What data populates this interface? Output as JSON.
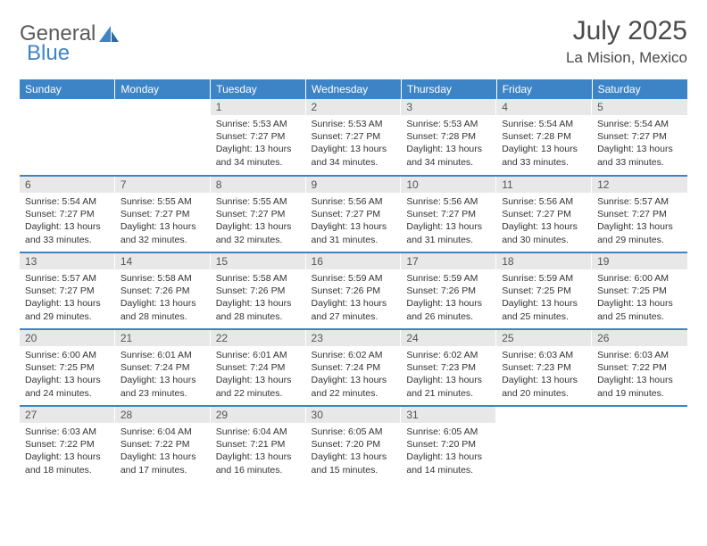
{
  "brand": {
    "part1": "General",
    "part2": "Blue"
  },
  "title": "July 2025",
  "location": "La Mision, Mexico",
  "colors": {
    "header_bg": "#3d84c6",
    "header_text": "#ffffff",
    "daynum_bg": "#e8e8e8",
    "row_border": "#3d84c6",
    "page_bg": "#ffffff",
    "body_text": "#333333"
  },
  "weekdays": [
    "Sunday",
    "Monday",
    "Tuesday",
    "Wednesday",
    "Thursday",
    "Friday",
    "Saturday"
  ],
  "weeks": [
    [
      {
        "empty": true
      },
      {
        "empty": true
      },
      {
        "day": "1",
        "sunrise": "Sunrise: 5:53 AM",
        "sunset": "Sunset: 7:27 PM",
        "daylight": "Daylight: 13 hours and 34 minutes."
      },
      {
        "day": "2",
        "sunrise": "Sunrise: 5:53 AM",
        "sunset": "Sunset: 7:27 PM",
        "daylight": "Daylight: 13 hours and 34 minutes."
      },
      {
        "day": "3",
        "sunrise": "Sunrise: 5:53 AM",
        "sunset": "Sunset: 7:28 PM",
        "daylight": "Daylight: 13 hours and 34 minutes."
      },
      {
        "day": "4",
        "sunrise": "Sunrise: 5:54 AM",
        "sunset": "Sunset: 7:28 PM",
        "daylight": "Daylight: 13 hours and 33 minutes."
      },
      {
        "day": "5",
        "sunrise": "Sunrise: 5:54 AM",
        "sunset": "Sunset: 7:27 PM",
        "daylight": "Daylight: 13 hours and 33 minutes."
      }
    ],
    [
      {
        "day": "6",
        "sunrise": "Sunrise: 5:54 AM",
        "sunset": "Sunset: 7:27 PM",
        "daylight": "Daylight: 13 hours and 33 minutes."
      },
      {
        "day": "7",
        "sunrise": "Sunrise: 5:55 AM",
        "sunset": "Sunset: 7:27 PM",
        "daylight": "Daylight: 13 hours and 32 minutes."
      },
      {
        "day": "8",
        "sunrise": "Sunrise: 5:55 AM",
        "sunset": "Sunset: 7:27 PM",
        "daylight": "Daylight: 13 hours and 32 minutes."
      },
      {
        "day": "9",
        "sunrise": "Sunrise: 5:56 AM",
        "sunset": "Sunset: 7:27 PM",
        "daylight": "Daylight: 13 hours and 31 minutes."
      },
      {
        "day": "10",
        "sunrise": "Sunrise: 5:56 AM",
        "sunset": "Sunset: 7:27 PM",
        "daylight": "Daylight: 13 hours and 31 minutes."
      },
      {
        "day": "11",
        "sunrise": "Sunrise: 5:56 AM",
        "sunset": "Sunset: 7:27 PM",
        "daylight": "Daylight: 13 hours and 30 minutes."
      },
      {
        "day": "12",
        "sunrise": "Sunrise: 5:57 AM",
        "sunset": "Sunset: 7:27 PM",
        "daylight": "Daylight: 13 hours and 29 minutes."
      }
    ],
    [
      {
        "day": "13",
        "sunrise": "Sunrise: 5:57 AM",
        "sunset": "Sunset: 7:27 PM",
        "daylight": "Daylight: 13 hours and 29 minutes."
      },
      {
        "day": "14",
        "sunrise": "Sunrise: 5:58 AM",
        "sunset": "Sunset: 7:26 PM",
        "daylight": "Daylight: 13 hours and 28 minutes."
      },
      {
        "day": "15",
        "sunrise": "Sunrise: 5:58 AM",
        "sunset": "Sunset: 7:26 PM",
        "daylight": "Daylight: 13 hours and 28 minutes."
      },
      {
        "day": "16",
        "sunrise": "Sunrise: 5:59 AM",
        "sunset": "Sunset: 7:26 PM",
        "daylight": "Daylight: 13 hours and 27 minutes."
      },
      {
        "day": "17",
        "sunrise": "Sunrise: 5:59 AM",
        "sunset": "Sunset: 7:26 PM",
        "daylight": "Daylight: 13 hours and 26 minutes."
      },
      {
        "day": "18",
        "sunrise": "Sunrise: 5:59 AM",
        "sunset": "Sunset: 7:25 PM",
        "daylight": "Daylight: 13 hours and 25 minutes."
      },
      {
        "day": "19",
        "sunrise": "Sunrise: 6:00 AM",
        "sunset": "Sunset: 7:25 PM",
        "daylight": "Daylight: 13 hours and 25 minutes."
      }
    ],
    [
      {
        "day": "20",
        "sunrise": "Sunrise: 6:00 AM",
        "sunset": "Sunset: 7:25 PM",
        "daylight": "Daylight: 13 hours and 24 minutes."
      },
      {
        "day": "21",
        "sunrise": "Sunrise: 6:01 AM",
        "sunset": "Sunset: 7:24 PM",
        "daylight": "Daylight: 13 hours and 23 minutes."
      },
      {
        "day": "22",
        "sunrise": "Sunrise: 6:01 AM",
        "sunset": "Sunset: 7:24 PM",
        "daylight": "Daylight: 13 hours and 22 minutes."
      },
      {
        "day": "23",
        "sunrise": "Sunrise: 6:02 AM",
        "sunset": "Sunset: 7:24 PM",
        "daylight": "Daylight: 13 hours and 22 minutes."
      },
      {
        "day": "24",
        "sunrise": "Sunrise: 6:02 AM",
        "sunset": "Sunset: 7:23 PM",
        "daylight": "Daylight: 13 hours and 21 minutes."
      },
      {
        "day": "25",
        "sunrise": "Sunrise: 6:03 AM",
        "sunset": "Sunset: 7:23 PM",
        "daylight": "Daylight: 13 hours and 20 minutes."
      },
      {
        "day": "26",
        "sunrise": "Sunrise: 6:03 AM",
        "sunset": "Sunset: 7:22 PM",
        "daylight": "Daylight: 13 hours and 19 minutes."
      }
    ],
    [
      {
        "day": "27",
        "sunrise": "Sunrise: 6:03 AM",
        "sunset": "Sunset: 7:22 PM",
        "daylight": "Daylight: 13 hours and 18 minutes."
      },
      {
        "day": "28",
        "sunrise": "Sunrise: 6:04 AM",
        "sunset": "Sunset: 7:22 PM",
        "daylight": "Daylight: 13 hours and 17 minutes."
      },
      {
        "day": "29",
        "sunrise": "Sunrise: 6:04 AM",
        "sunset": "Sunset: 7:21 PM",
        "daylight": "Daylight: 13 hours and 16 minutes."
      },
      {
        "day": "30",
        "sunrise": "Sunrise: 6:05 AM",
        "sunset": "Sunset: 7:20 PM",
        "daylight": "Daylight: 13 hours and 15 minutes."
      },
      {
        "day": "31",
        "sunrise": "Sunrise: 6:05 AM",
        "sunset": "Sunset: 7:20 PM",
        "daylight": "Daylight: 13 hours and 14 minutes."
      },
      {
        "empty": true
      },
      {
        "empty": true
      }
    ]
  ]
}
